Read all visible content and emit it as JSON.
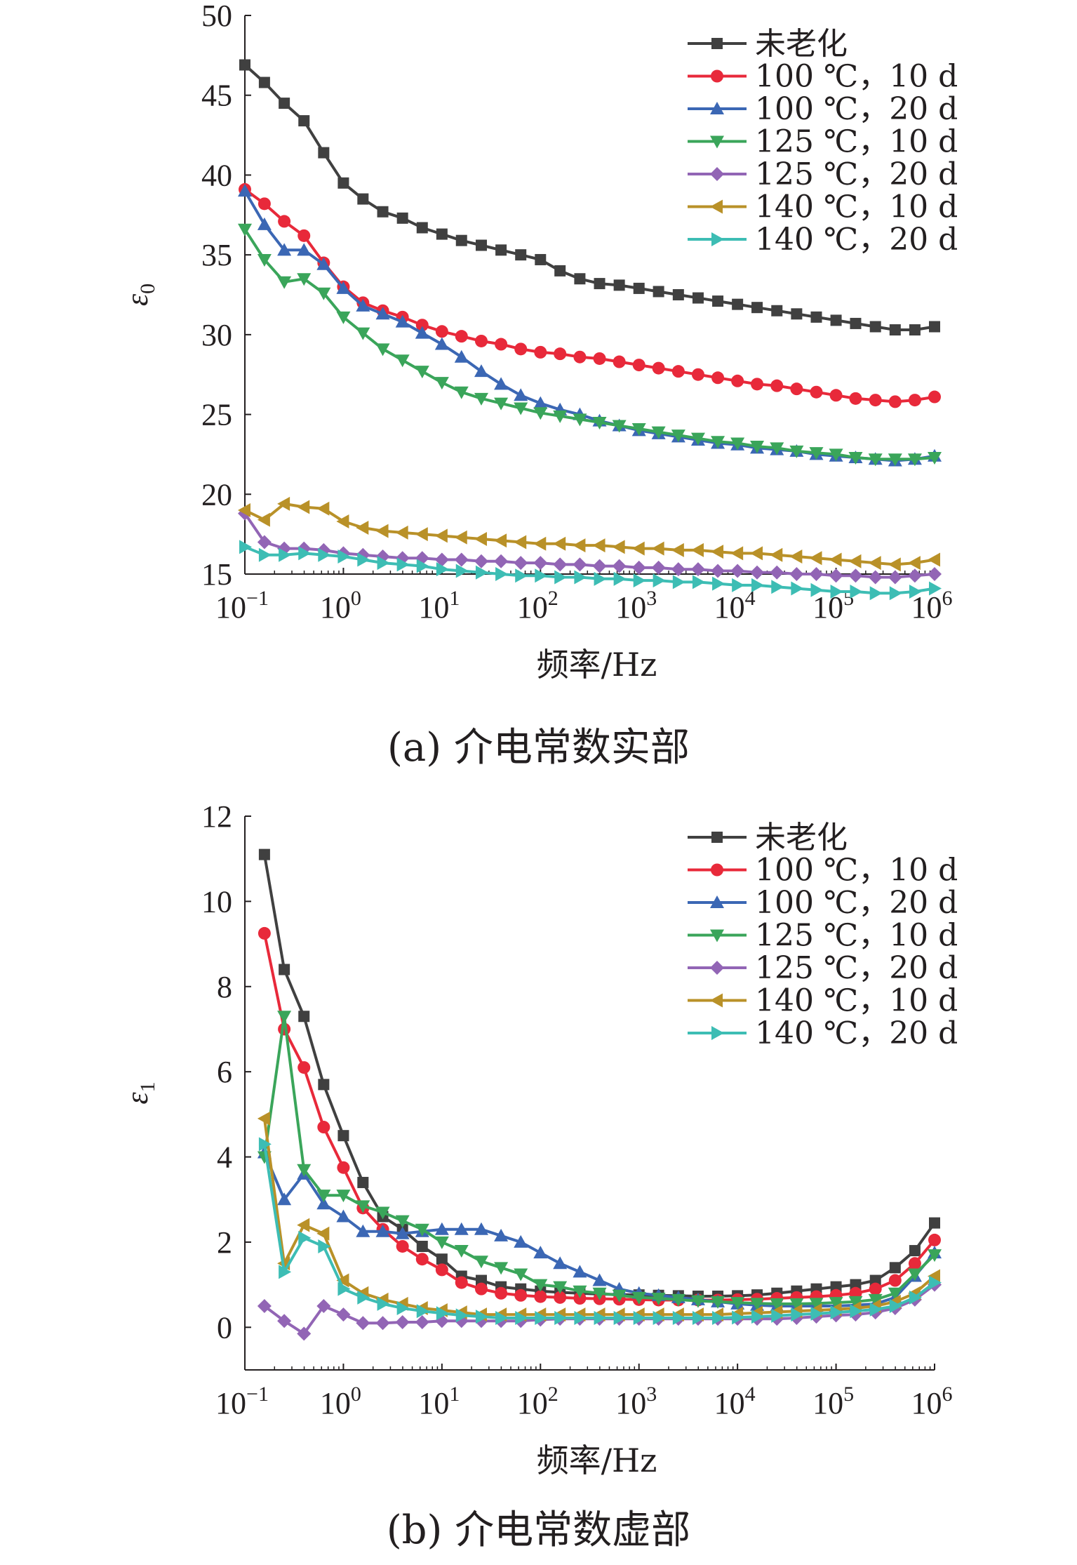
{
  "charts": [
    {
      "id": "a",
      "caption": "(a) 介电常数实部",
      "chart_data": {
        "type": "line",
        "xlabel": "频率/Hz",
        "ylabel": "ε0",
        "ylabel_base": "ε",
        "ylabel_sub": "0",
        "x_scale": "log",
        "xlim": [
          0.1,
          1000000
        ],
        "ylim": [
          15,
          50
        ],
        "y_ticks": [
          15,
          20,
          25,
          30,
          35,
          40,
          45,
          50
        ],
        "x_ticks": [
          {
            "value": 0.1,
            "base": "10",
            "exp": "−1"
          },
          {
            "value": 1,
            "base": "10",
            "exp": "0"
          },
          {
            "value": 10,
            "base": "10",
            "exp": "1"
          },
          {
            "value": 100,
            "base": "10",
            "exp": "2"
          },
          {
            "value": 1000,
            "base": "10",
            "exp": "3"
          },
          {
            "value": 10000,
            "base": "10",
            "exp": "4"
          },
          {
            "value": 100000,
            "base": "10",
            "exp": "5"
          },
          {
            "value": 1000000,
            "base": "10",
            "exp": "6"
          }
        ],
        "legend_position": "top-right",
        "grid": false,
        "x": [
          0.1,
          0.158,
          0.251,
          0.398,
          0.631,
          1,
          1.58,
          2.51,
          3.98,
          6.31,
          10,
          15.8,
          25.1,
          39.8,
          63.1,
          100,
          158,
          251,
          398,
          631,
          1000,
          1580,
          2510,
          3980,
          6310,
          10000,
          15800,
          25100,
          39800,
          63100,
          100000,
          158000,
          251000,
          398000,
          631000,
          1000000
        ],
        "series": [
          {
            "name": "未老化",
            "color": "#404040",
            "marker": "square",
            "values": [
              46.9,
              45.8,
              44.5,
              43.4,
              41.4,
              39.5,
              38.5,
              37.7,
              37.3,
              36.7,
              36.3,
              35.9,
              35.6,
              35.3,
              35.0,
              34.7,
              34.0,
              33.5,
              33.2,
              33.1,
              32.9,
              32.7,
              32.5,
              32.3,
              32.1,
              31.9,
              31.7,
              31.5,
              31.3,
              31.1,
              30.9,
              30.7,
              30.5,
              30.3,
              30.3,
              30.5
            ]
          },
          {
            "name": "100 ℃，10 d",
            "color": "#e8293a",
            "marker": "circle",
            "values": [
              39.1,
              38.2,
              37.1,
              36.2,
              34.5,
              33.0,
              32.0,
              31.5,
              31.1,
              30.6,
              30.2,
              29.9,
              29.6,
              29.4,
              29.1,
              28.9,
              28.8,
              28.6,
              28.5,
              28.3,
              28.1,
              27.9,
              27.7,
              27.5,
              27.3,
              27.1,
              26.9,
              26.8,
              26.6,
              26.4,
              26.2,
              26.0,
              25.9,
              25.8,
              25.9,
              26.1
            ]
          },
          {
            "name": "100 ℃，20 d",
            "color": "#3b67b4",
            "marker": "triangle-up",
            "values": [
              39.0,
              36.9,
              35.3,
              35.3,
              34.4,
              32.9,
              31.8,
              31.3,
              30.8,
              30.1,
              29.4,
              28.6,
              27.7,
              26.9,
              26.2,
              25.7,
              25.3,
              25.0,
              24.6,
              24.3,
              24.0,
              23.8,
              23.6,
              23.4,
              23.2,
              23.1,
              22.9,
              22.8,
              22.7,
              22.5,
              22.4,
              22.3,
              22.2,
              22.1,
              22.2,
              22.4
            ]
          },
          {
            "name": "125 ℃，10 d",
            "color": "#3aa55a",
            "marker": "triangle-down",
            "values": [
              36.6,
              34.7,
              33.3,
              33.5,
              32.6,
              31.1,
              30.1,
              29.1,
              28.4,
              27.7,
              27.0,
              26.4,
              26.0,
              25.7,
              25.4,
              25.1,
              24.9,
              24.7,
              24.5,
              24.3,
              24.1,
              23.9,
              23.7,
              23.5,
              23.3,
              23.2,
              23.0,
              22.9,
              22.7,
              22.6,
              22.5,
              22.3,
              22.2,
              22.2,
              22.2,
              22.3
            ]
          },
          {
            "name": "125 ℃，20 d",
            "color": "#9265b5",
            "marker": "diamond",
            "values": [
              18.8,
              17.0,
              16.6,
              16.6,
              16.5,
              16.3,
              16.2,
              16.1,
              16.0,
              16.0,
              15.9,
              15.9,
              15.8,
              15.8,
              15.7,
              15.7,
              15.6,
              15.6,
              15.5,
              15.5,
              15.4,
              15.4,
              15.3,
              15.3,
              15.2,
              15.2,
              15.1,
              15.1,
              15.0,
              15.0,
              14.9,
              14.9,
              14.8,
              14.8,
              14.9,
              15.0
            ]
          },
          {
            "name": "140 ℃，10 d",
            "color": "#b99128",
            "marker": "triangle-left",
            "values": [
              19.0,
              18.4,
              19.4,
              19.2,
              19.1,
              18.3,
              17.9,
              17.7,
              17.6,
              17.5,
              17.4,
              17.3,
              17.2,
              17.1,
              17.0,
              16.9,
              16.9,
              16.8,
              16.8,
              16.7,
              16.6,
              16.6,
              16.5,
              16.5,
              16.4,
              16.3,
              16.3,
              16.2,
              16.1,
              16.0,
              15.9,
              15.8,
              15.7,
              15.6,
              15.7,
              15.9
            ]
          },
          {
            "name": "140 ℃，20 d",
            "color": "#3dbdb4",
            "marker": "triangle-right",
            "values": [
              16.7,
              16.2,
              16.2,
              16.3,
              16.2,
              16.1,
              15.9,
              15.7,
              15.6,
              15.5,
              15.3,
              15.2,
              15.1,
              15.0,
              14.9,
              14.9,
              14.8,
              14.8,
              14.7,
              14.7,
              14.6,
              14.6,
              14.5,
              14.5,
              14.4,
              14.3,
              14.3,
              14.2,
              14.1,
              14.0,
              13.9,
              13.9,
              13.8,
              13.8,
              13.9,
              14.1
            ]
          }
        ]
      }
    },
    {
      "id": "b",
      "caption": "(b) 介电常数虚部",
      "chart_data": {
        "type": "line",
        "xlabel": "频率/Hz",
        "ylabel": "ε1",
        "ylabel_base": "ε",
        "ylabel_sub": "1",
        "x_scale": "log",
        "xlim": [
          0.1,
          1000000
        ],
        "ylim": [
          -1,
          12
        ],
        "y_ticks": [
          0,
          2,
          4,
          6,
          8,
          10,
          12
        ],
        "x_ticks": [
          {
            "value": 0.1,
            "base": "10",
            "exp": "−1"
          },
          {
            "value": 1,
            "base": "10",
            "exp": "0"
          },
          {
            "value": 10,
            "base": "10",
            "exp": "1"
          },
          {
            "value": 100,
            "base": "10",
            "exp": "2"
          },
          {
            "value": 1000,
            "base": "10",
            "exp": "3"
          },
          {
            "value": 10000,
            "base": "10",
            "exp": "4"
          },
          {
            "value": 100000,
            "base": "10",
            "exp": "5"
          },
          {
            "value": 1000000,
            "base": "10",
            "exp": "6"
          }
        ],
        "legend_position": "top-right",
        "grid": false,
        "x": [
          0.158,
          0.251,
          0.398,
          0.631,
          1,
          1.58,
          2.51,
          3.98,
          6.31,
          10,
          15.8,
          25.1,
          39.8,
          63.1,
          100,
          158,
          251,
          398,
          631,
          1000,
          1580,
          2510,
          3980,
          6310,
          10000,
          15800,
          25100,
          39800,
          63100,
          100000,
          158000,
          251000,
          398000,
          631000,
          1000000
        ],
        "series": [
          {
            "name": "未老化",
            "color": "#404040",
            "marker": "square",
            "values": [
              11.1,
              8.4,
              7.3,
              5.7,
              4.5,
              3.4,
              2.6,
              2.3,
              1.9,
              1.6,
              1.2,
              1.1,
              0.95,
              0.9,
              0.85,
              0.82,
              0.8,
              0.78,
              0.77,
              0.76,
              0.75,
              0.74,
              0.73,
              0.73,
              0.74,
              0.76,
              0.8,
              0.85,
              0.9,
              0.95,
              1.0,
              1.1,
              1.4,
              1.8,
              2.45
            ]
          },
          {
            "name": "100 ℃，10 d",
            "color": "#e8293a",
            "marker": "circle",
            "values": [
              9.25,
              7.0,
              6.1,
              4.7,
              3.75,
              2.8,
              2.3,
              1.9,
              1.6,
              1.35,
              1.05,
              0.9,
              0.8,
              0.75,
              0.72,
              0.7,
              0.68,
              0.67,
              0.66,
              0.65,
              0.64,
              0.64,
              0.64,
              0.64,
              0.65,
              0.66,
              0.68,
              0.7,
              0.72,
              0.75,
              0.8,
              0.9,
              1.1,
              1.5,
              2.05
            ]
          },
          {
            "name": "100 ℃，20 d",
            "color": "#3b67b4",
            "marker": "triangle-up",
            "values": [
              4.1,
              3.0,
              3.6,
              2.9,
              2.6,
              2.25,
              2.25,
              2.2,
              2.25,
              2.3,
              2.3,
              2.3,
              2.15,
              2.0,
              1.75,
              1.5,
              1.3,
              1.1,
              0.9,
              0.8,
              0.75,
              0.7,
              0.65,
              0.6,
              0.55,
              0.52,
              0.5,
              0.5,
              0.5,
              0.5,
              0.52,
              0.55,
              0.7,
              1.2,
              1.75
            ]
          },
          {
            "name": "125 ℃，10 d",
            "color": "#3aa55a",
            "marker": "triangle-down",
            "values": [
              4.0,
              7.3,
              3.7,
              3.1,
              3.1,
              2.85,
              2.7,
              2.5,
              2.3,
              2.0,
              1.8,
              1.55,
              1.4,
              1.25,
              1.0,
              0.95,
              0.85,
              0.8,
              0.75,
              0.7,
              0.68,
              0.65,
              0.62,
              0.6,
              0.58,
              0.56,
              0.55,
              0.55,
              0.56,
              0.58,
              0.6,
              0.65,
              0.8,
              1.25,
              1.7
            ]
          },
          {
            "name": "125 ℃，20 d",
            "color": "#9265b5",
            "marker": "diamond",
            "values": [
              0.5,
              0.15,
              -0.15,
              0.5,
              0.3,
              0.1,
              0.1,
              0.12,
              0.12,
              0.15,
              0.15,
              0.15,
              0.15,
              0.15,
              0.18,
              0.2,
              0.2,
              0.2,
              0.2,
              0.2,
              0.2,
              0.2,
              0.2,
              0.2,
              0.2,
              0.2,
              0.2,
              0.22,
              0.25,
              0.28,
              0.3,
              0.35,
              0.45,
              0.65,
              1.0
            ]
          },
          {
            "name": "140 ℃，10 d",
            "color": "#b99128",
            "marker": "triangle-left",
            "values": [
              4.9,
              1.5,
              2.4,
              2.2,
              1.1,
              0.8,
              0.65,
              0.55,
              0.45,
              0.4,
              0.35,
              0.3,
              0.3,
              0.3,
              0.3,
              0.3,
              0.3,
              0.3,
              0.3,
              0.3,
              0.3,
              0.3,
              0.3,
              0.3,
              0.32,
              0.34,
              0.36,
              0.38,
              0.4,
              0.42,
              0.45,
              0.5,
              0.6,
              0.8,
              1.2
            ]
          },
          {
            "name": "140 ℃，20 d",
            "color": "#3dbdb4",
            "marker": "triangle-right",
            "values": [
              4.3,
              1.3,
              2.1,
              1.9,
              0.9,
              0.7,
              0.55,
              0.45,
              0.38,
              0.33,
              0.28,
              0.25,
              0.22,
              0.22,
              0.22,
              0.22,
              0.22,
              0.22,
              0.22,
              0.22,
              0.22,
              0.22,
              0.22,
              0.22,
              0.23,
              0.25,
              0.27,
              0.3,
              0.32,
              0.35,
              0.38,
              0.42,
              0.5,
              0.7,
              1.05
            ]
          }
        ]
      }
    }
  ]
}
